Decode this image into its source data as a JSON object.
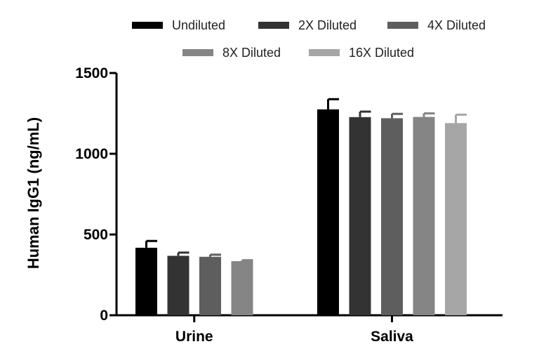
{
  "chart_data": {
    "type": "bar",
    "title": "",
    "xlabel": "",
    "ylabel": "Human IgG1 (ng/mL)",
    "ylim": [
      0,
      1500
    ],
    "yticks": [
      0,
      500,
      1000,
      1500
    ],
    "categories": [
      "Urine",
      "Saliva"
    ],
    "series": [
      {
        "name": "Undiluted",
        "color": "#000000",
        "values": [
          418,
          1275
        ],
        "errors": [
          42,
          63
        ]
      },
      {
        "name": "2X Diluted",
        "color": "#333333",
        "values": [
          368,
          1227
        ],
        "errors": [
          20,
          34
        ]
      },
      {
        "name": "4X Diluted",
        "color": "#5e5e5e",
        "values": [
          362,
          1220
        ],
        "errors": [
          13,
          27
        ]
      },
      {
        "name": "8X Diluted",
        "color": "#858585",
        "values": [
          335,
          1228
        ],
        "errors": [
          6,
          22
        ]
      },
      {
        "name": "16X Diluted",
        "color": "#a6a6a6",
        "values": [
          null,
          1190
        ],
        "errors": [
          null,
          52
        ]
      }
    ],
    "legend_position": "top",
    "grid": false
  }
}
